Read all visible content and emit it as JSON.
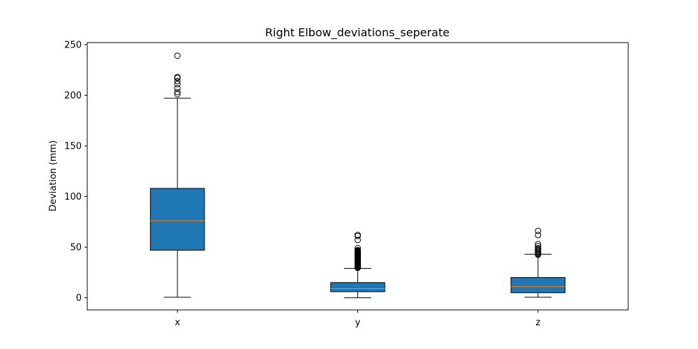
{
  "chart_data": {
    "type": "box",
    "title": "Right Elbow_deviations_seperate",
    "xlabel": "",
    "ylabel": "Deviation (mm)",
    "ylim": [
      -12,
      252
    ],
    "yticks": [
      0,
      50,
      100,
      150,
      200,
      250
    ],
    "categories": [
      "x",
      "y",
      "z"
    ],
    "grid": false,
    "box_color": "#1f77b4",
    "median_color": "#ff7f0e",
    "boxes": [
      {
        "label": "x",
        "whisker_low": 0.5,
        "q1": 47,
        "median": 76,
        "q3": 108,
        "whisker_high": 197,
        "outliers": [
          201,
          203,
          207,
          211,
          214,
          217,
          218,
          239
        ]
      },
      {
        "label": "y",
        "whisker_low": 0,
        "q1": 6,
        "median": 9,
        "q3": 15,
        "whisker_high": 29,
        "outliers": [
          29.5,
          30,
          30.5,
          31,
          31.5,
          32,
          32.5,
          33,
          33.5,
          34,
          34.5,
          35,
          35.5,
          36,
          36.5,
          37,
          37.5,
          38,
          38.5,
          39,
          39.5,
          40,
          40.5,
          41,
          41.5,
          42,
          42.5,
          43,
          43.5,
          44,
          44.5,
          45,
          45.5,
          46,
          46.5,
          47,
          49,
          57,
          61,
          62
        ]
      },
      {
        "label": "z",
        "whisker_low": 0.5,
        "q1": 5,
        "median": 11,
        "q3": 20,
        "whisker_high": 43,
        "outliers": [
          42.5,
          43,
          44,
          45,
          46,
          47,
          48,
          49,
          51,
          53,
          62,
          66
        ]
      }
    ]
  }
}
